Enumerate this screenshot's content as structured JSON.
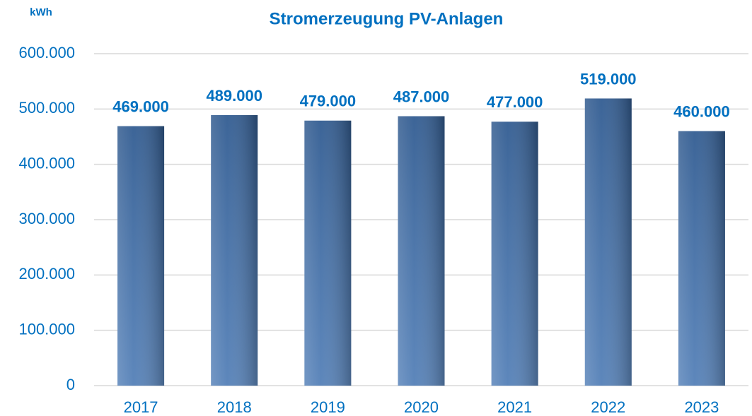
{
  "chart_data": {
    "type": "bar",
    "title": "Stromerzeugung PV-Anlagen",
    "y_label": "kWh",
    "categories": [
      "2017",
      "2018",
      "2019",
      "2020",
      "2021",
      "2022",
      "2023"
    ],
    "values": [
      469000,
      489000,
      479000,
      487000,
      477000,
      519000,
      460000
    ],
    "value_labels": [
      "469.000",
      "489.000",
      "479.000",
      "487.000",
      "477.000",
      "519.000",
      "460.000"
    ],
    "color": "#3d6fae",
    "ylim": [
      0,
      600000
    ],
    "yticks": [
      0,
      {
        "value": 100000,
        "label": "100.000"
      },
      {
        "value": 200000,
        "label": "200.000"
      },
      {
        "value": 300000,
        "label": "300.000"
      },
      {
        "value": 400000,
        "label": "400.000"
      },
      {
        "value": 500000,
        "label": "500.000"
      },
      {
        "value": 600000,
        "label": "600.000"
      }
    ],
    "grid": true
  }
}
